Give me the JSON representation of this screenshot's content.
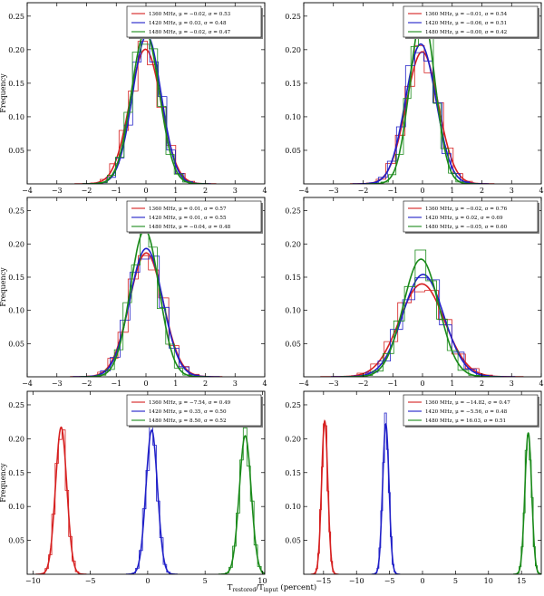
{
  "figure": {
    "xlabel": "T_restored / T_input (percent)",
    "xlabel_main": "T",
    "xlabel_sub1": "restored",
    "xlabel_sub2": "input",
    "xlabel_tail": " (percent)"
  },
  "chart_data": [
    {
      "type": "histogram",
      "title": "",
      "ylabel": "Frequency",
      "xlim": [
        -4,
        4
      ],
      "ylim": [
        0,
        0.27
      ],
      "xticks": [
        -4,
        -3,
        -2,
        -1,
        0,
        1,
        2,
        3,
        4
      ],
      "yticks": [
        0.05,
        0.1,
        0.15,
        0.2,
        0.25
      ],
      "legend_position": "top-right",
      "series": [
        {
          "name": "1360 MHz, μ = −0.02, σ = 0.53",
          "mu": -0.02,
          "sigma": 0.53,
          "color": "#d62020"
        },
        {
          "name": "1420 MHz, μ = 0.03, σ = 0.48",
          "mu": 0.03,
          "sigma": 0.48,
          "color": "#2020c8"
        },
        {
          "name": "1480 MHz, μ = −0.02, σ = 0.47",
          "mu": -0.02,
          "sigma": 0.47,
          "color": "#1a8a1a"
        }
      ]
    },
    {
      "type": "histogram",
      "title": "",
      "ylabel": "",
      "xlim": [
        -4,
        4
      ],
      "ylim": [
        0,
        0.27
      ],
      "xticks": [
        -4,
        -3,
        -2,
        -1,
        0,
        1,
        2,
        3,
        4
      ],
      "yticks": [
        0.05,
        0.1,
        0.15,
        0.2,
        0.25
      ],
      "legend_position": "top-right",
      "series": [
        {
          "name": "1360 MHz, μ = −0.01, σ = 0.54",
          "mu": -0.01,
          "sigma": 0.54,
          "color": "#d62020"
        },
        {
          "name": "1420 MHz, μ = −0.06, σ = 0.51",
          "mu": -0.06,
          "sigma": 0.51,
          "color": "#2020c8"
        },
        {
          "name": "1480 MHz, μ = −0.00, σ = 0.42",
          "mu": 0.0,
          "sigma": 0.42,
          "color": "#1a8a1a"
        }
      ]
    },
    {
      "type": "histogram",
      "title": "",
      "ylabel": "Frequency",
      "xlim": [
        -4,
        4
      ],
      "ylim": [
        0,
        0.27
      ],
      "xticks": [
        -4,
        -3,
        -2,
        -1,
        0,
        1,
        2,
        3,
        4
      ],
      "yticks": [
        0.05,
        0.1,
        0.15,
        0.2,
        0.25
      ],
      "legend_position": "top-right",
      "series": [
        {
          "name": "1360 MHz, μ = 0.01, σ = 0.57",
          "mu": 0.01,
          "sigma": 0.57,
          "color": "#d62020"
        },
        {
          "name": "1420 MHz, μ = 0.01, σ = 0.55",
          "mu": 0.01,
          "sigma": 0.55,
          "color": "#2020c8"
        },
        {
          "name": "1480 MHz, μ = −0.04, σ = 0.48",
          "mu": -0.04,
          "sigma": 0.48,
          "color": "#1a8a1a"
        }
      ]
    },
    {
      "type": "histogram",
      "title": "",
      "ylabel": "",
      "xlim": [
        -4,
        4
      ],
      "ylim": [
        0,
        0.27
      ],
      "xticks": [
        -4,
        -3,
        -2,
        -1,
        0,
        1,
        2,
        3,
        4
      ],
      "yticks": [
        0.05,
        0.1,
        0.15,
        0.2,
        0.25
      ],
      "legend_position": "top-right",
      "series": [
        {
          "name": "1360 MHz, μ = −0.02, σ = 0.76",
          "mu": -0.02,
          "sigma": 0.76,
          "color": "#d62020"
        },
        {
          "name": "1420 MHz, μ = 0.02, σ = 0.69",
          "mu": 0.02,
          "sigma": 0.69,
          "color": "#2020c8"
        },
        {
          "name": "1480 MHz, μ = −0.05, σ = 0.60",
          "mu": -0.05,
          "sigma": 0.6,
          "color": "#1a8a1a"
        }
      ]
    },
    {
      "type": "histogram",
      "title": "",
      "ylabel": "Frequency",
      "xlim": [
        -10.5,
        10.2
      ],
      "ylim": [
        0,
        0.27
      ],
      "xticks": [
        -10,
        -5,
        0,
        5,
        10
      ],
      "yticks": [
        0.05,
        0.1,
        0.15,
        0.2,
        0.25
      ],
      "legend_position": "top-right",
      "series": [
        {
          "name": "1360 MHz, μ = −7.54, σ = 0.49",
          "mu": -7.54,
          "sigma": 0.49,
          "color": "#d62020"
        },
        {
          "name": "1420 MHz, μ = 0.35, σ = 0.50",
          "mu": 0.35,
          "sigma": 0.5,
          "color": "#2020c8"
        },
        {
          "name": "1480 MHz, μ = 8.50, σ = 0.52",
          "mu": 8.5,
          "sigma": 0.52,
          "color": "#1a8a1a"
        }
      ]
    },
    {
      "type": "histogram",
      "title": "",
      "ylabel": "",
      "xlim": [
        -18,
        18
      ],
      "ylim": [
        0,
        0.27
      ],
      "xticks": [
        -15,
        -10,
        -5,
        0,
        5,
        10,
        15
      ],
      "yticks": [
        0.05,
        0.1,
        0.15,
        0.2,
        0.25
      ],
      "legend_position": "top-right",
      "series": [
        {
          "name": "1360 MHz, μ = −14.82, σ = 0.47",
          "mu": -14.82,
          "sigma": 0.47,
          "color": "#d62020"
        },
        {
          "name": "1420 MHz, μ = −5.56, σ = 0.48",
          "mu": -5.56,
          "sigma": 0.48,
          "color": "#2020c8"
        },
        {
          "name": "1480 MHz, μ = 16.03, σ = 0.51",
          "mu": 16.03,
          "sigma": 0.51,
          "color": "#1a8a1a"
        }
      ]
    }
  ]
}
